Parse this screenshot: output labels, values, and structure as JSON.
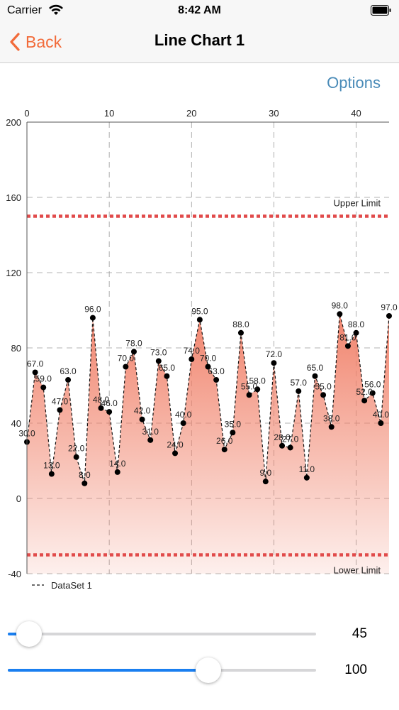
{
  "status_bar": {
    "carrier": "Carrier",
    "time": "8:42 AM"
  },
  "nav": {
    "back_label": "Back",
    "title": "Line Chart 1"
  },
  "options_label": "Options",
  "colors": {
    "accent": "#f26b3a",
    "options": "#4a8bb8",
    "fill": "#f07e66",
    "limit": "#e14b4b",
    "slider": "#1a7ff0"
  },
  "chart_data": {
    "type": "area",
    "x": [
      0,
      1,
      2,
      3,
      4,
      5,
      6,
      7,
      8,
      9,
      10,
      11,
      12,
      13,
      14,
      15,
      16,
      17,
      18,
      19,
      20,
      21,
      22,
      23,
      24,
      25,
      26,
      27,
      28,
      29,
      30,
      31,
      32,
      33,
      34,
      35,
      36,
      37,
      38,
      39,
      40,
      41,
      42,
      43,
      44
    ],
    "series": [
      {
        "name": "DataSet 1",
        "values": [
          30,
          67,
          59,
          13,
          47,
          63,
          22,
          8,
          96,
          48,
          46,
          14,
          70,
          78,
          42,
          31,
          73,
          65,
          24,
          40,
          74,
          95,
          70,
          63,
          26,
          35,
          88,
          55,
          58,
          9,
          72,
          28,
          27,
          57,
          11,
          65,
          55,
          38,
          98,
          81,
          88,
          52,
          56,
          40,
          97
        ]
      }
    ],
    "value_labels": [
      "30.0",
      "67.0",
      "59.0",
      "13.0",
      "47.0",
      "63.0",
      "22.0",
      "8.0",
      "96.0",
      "48.0",
      "46.0",
      "14.0",
      "70.0",
      "78.0",
      "42.0",
      "31.0",
      "73.0",
      "65.0",
      "24.0",
      "40.0",
      "74.0",
      "95.0",
      "70.0",
      "63.0",
      "26.0",
      "35.0",
      "88.0",
      "55.0",
      "58.0",
      "9.0",
      "72.0",
      "28.0",
      "27.0",
      "57.0",
      "11.0",
      "65.0",
      "55.0",
      "38.0",
      "98.0",
      "81.0",
      "88.0",
      "52.0",
      "56.0",
      "40.0",
      "97.0"
    ],
    "xlim": [
      0,
      44
    ],
    "ylim": [
      -40,
      200
    ],
    "x_ticks": [
      "0",
      "10",
      "20",
      "30",
      "40"
    ],
    "y_ticks": [
      "200",
      "160",
      "120",
      "80",
      "40",
      "0",
      "-40"
    ],
    "limit_lines": [
      {
        "label": "Upper Limit",
        "value": 150
      },
      {
        "label": "Lower Limit",
        "value": -30
      }
    ],
    "legend": "bottom-left",
    "grid": true
  },
  "sliders": [
    {
      "value": 45,
      "label": "45",
      "fraction": 0.07
    },
    {
      "value": 100,
      "label": "100",
      "fraction": 0.65
    }
  ]
}
